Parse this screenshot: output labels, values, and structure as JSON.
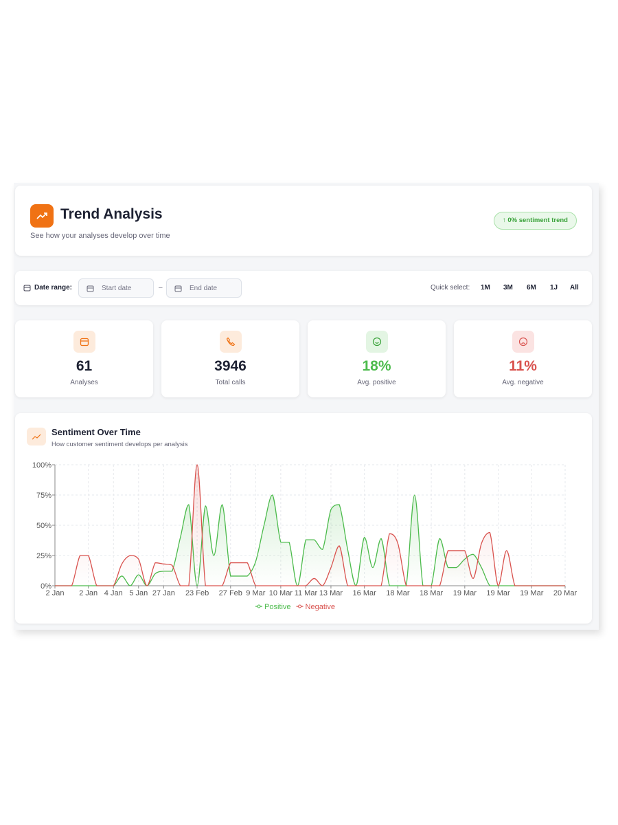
{
  "header": {
    "title": "Trend Analysis",
    "subtitle": "See how your analyses develop over time",
    "badge": "↑ 0% sentiment trend"
  },
  "filters": {
    "date_range_label": "Date range:",
    "start_placeholder": "Start date",
    "separator": "–",
    "end_placeholder": "End date",
    "quick_select_label": "Quick select:",
    "quick_options": [
      "1M",
      "3M",
      "6M",
      "1J",
      "All"
    ]
  },
  "stats": [
    {
      "value": "61",
      "label": "Analyses"
    },
    {
      "value": "3946",
      "label": "Total calls"
    },
    {
      "value": "18%",
      "label": "Avg. positive"
    },
    {
      "value": "11%",
      "label": "Avg. negative"
    }
  ],
  "chart_data": {
    "type": "line",
    "title": "Sentiment Over Time",
    "subtitle": "How customer sentiment develops per analysis",
    "categories": [
      "2 Jan",
      null,
      null,
      null,
      "2 Jan",
      null,
      null,
      "4 Jan",
      null,
      null,
      "5 Jan",
      null,
      null,
      "27 Jan",
      null,
      null,
      null,
      "23 Feb",
      null,
      null,
      null,
      "27 Feb",
      null,
      null,
      "9 Mar",
      null,
      null,
      "10 Mar",
      null,
      null,
      "11 Mar",
      null,
      null,
      "13 Mar",
      null,
      null,
      null,
      "16 Mar",
      null,
      null,
      null,
      "18 Mar",
      null,
      null,
      null,
      "18 Mar",
      null,
      null,
      null,
      "19 Mar",
      null,
      null,
      null,
      "19 Mar",
      null,
      null,
      null,
      "19 Mar",
      null,
      null,
      null,
      "20 Mar"
    ],
    "series": [
      {
        "name": "Positive",
        "color": "#4cbb4c",
        "values": [
          0,
          0,
          0,
          0,
          0,
          0,
          0,
          0,
          8,
          0,
          9,
          0,
          10,
          12,
          12,
          40,
          67,
          0,
          66,
          25,
          67,
          8,
          8,
          8,
          20,
          50,
          75,
          36,
          36,
          0,
          38,
          38,
          30,
          63,
          67,
          30,
          0,
          40,
          15,
          39,
          0,
          0,
          0,
          75,
          0,
          0,
          39,
          15,
          15,
          22,
          26,
          15,
          0,
          0,
          0,
          0,
          0,
          0,
          0,
          0,
          0,
          0
        ]
      },
      {
        "name": "Negative",
        "color": "#d9534f",
        "values": [
          0,
          0,
          0,
          25,
          25,
          0,
          0,
          0,
          18,
          25,
          22,
          0,
          19,
          18,
          17,
          0,
          0,
          100,
          0,
          0,
          0,
          19,
          19,
          19,
          0,
          0,
          0,
          0,
          0,
          0,
          0,
          6,
          0,
          15,
          33,
          0,
          0,
          0,
          0,
          0,
          43,
          35,
          0,
          0,
          0,
          0,
          0,
          29,
          29,
          29,
          6,
          35,
          44,
          0,
          29,
          0,
          0,
          0,
          0,
          0,
          0,
          0
        ]
      }
    ],
    "ylim": [
      0,
      100
    ],
    "yticks": [
      {
        "value": 0,
        "label": "0%"
      },
      {
        "value": 25,
        "label": "25%"
      },
      {
        "value": 50,
        "label": "50%"
      },
      {
        "value": 75,
        "label": "75%"
      },
      {
        "value": 100,
        "label": "100%"
      }
    ],
    "grid": true,
    "legend": "bottom"
  }
}
